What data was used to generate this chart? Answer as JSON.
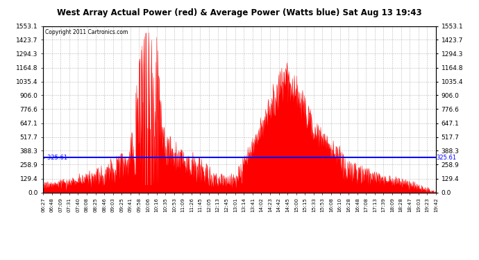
{
  "title": "West Array Actual Power (red) & Average Power (Watts blue) Sat Aug 13 19:43",
  "copyright": "Copyright 2011 Cartronics.com",
  "average_power": 325.61,
  "ymax": 1553.1,
  "ymin": 0.0,
  "yticks": [
    0.0,
    129.4,
    258.9,
    388.3,
    517.7,
    647.1,
    776.6,
    906.0,
    1035.4,
    1164.8,
    1294.3,
    1423.7,
    1553.1
  ],
  "xtick_labels": [
    "06:27",
    "06:48",
    "07:09",
    "07:31",
    "07:40",
    "08:08",
    "08:25",
    "08:46",
    "09:03",
    "09:25",
    "09:41",
    "09:58",
    "10:06",
    "10:16",
    "10:35",
    "10:53",
    "11:09",
    "11:26",
    "11:45",
    "12:05",
    "12:13",
    "12:45",
    "13:01",
    "13:14",
    "13:41",
    "14:02",
    "14:23",
    "14:42",
    "14:45",
    "15:00",
    "15:15",
    "15:33",
    "15:53",
    "16:08",
    "16:10",
    "16:28",
    "16:48",
    "17:08",
    "17:13",
    "17:39",
    "18:09",
    "18:28",
    "18:47",
    "19:03",
    "19:23",
    "19:42"
  ],
  "fill_color": "#FF0000",
  "avg_line_color": "#0000FF",
  "bg_color": "#FFFFFF",
  "grid_color": "#888888"
}
